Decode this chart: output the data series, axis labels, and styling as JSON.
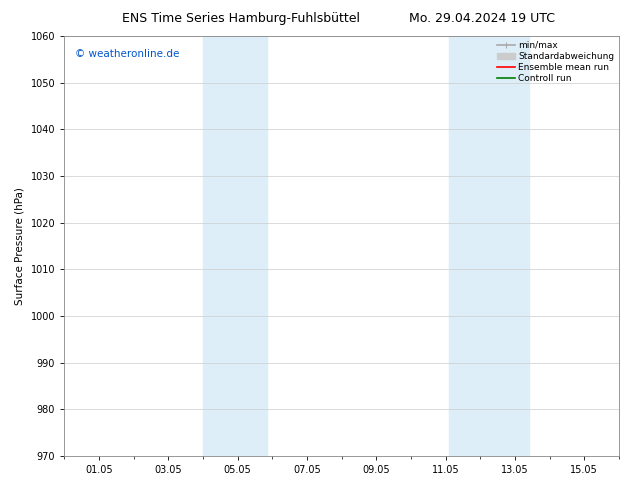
{
  "title_left": "ENS Time Series Hamburg-Fuhlsbüttel",
  "title_right": "Mo. 29.04.2024 19 UTC",
  "ylabel": "Surface Pressure (hPa)",
  "ylim": [
    970,
    1060
  ],
  "yticks": [
    970,
    980,
    990,
    1000,
    1010,
    1020,
    1030,
    1040,
    1050,
    1060
  ],
  "xtick_labels": [
    "01.05",
    "03.05",
    "05.05",
    "07.05",
    "09.05",
    "11.05",
    "13.05",
    "15.05"
  ],
  "xtick_positions": [
    1,
    3,
    5,
    7,
    9,
    11,
    13,
    15
  ],
  "xlim": [
    0,
    16
  ],
  "shaded_bands": [
    {
      "x_start": 4.0,
      "x_end": 5.85,
      "color": "#ddeef8"
    },
    {
      "x_start": 11.1,
      "x_end": 13.4,
      "color": "#ddeef8"
    }
  ],
  "watermark_text": "© weatheronline.de",
  "watermark_color": "#0055cc",
  "legend_entries": [
    {
      "label": "min/max",
      "color": "#aaaaaa",
      "lw": 1.2,
      "style": "solid"
    },
    {
      "label": "Standardabweichung",
      "color": "#cccccc",
      "lw": 5,
      "style": "solid"
    },
    {
      "label": "Ensemble mean run",
      "color": "red",
      "lw": 1.2,
      "style": "solid"
    },
    {
      "label": "Controll run",
      "color": "green",
      "lw": 1.2,
      "style": "solid"
    }
  ],
  "background_color": "#ffffff",
  "grid_color": "#cccccc",
  "title_fontsize": 9,
  "axis_fontsize": 7.5,
  "tick_fontsize": 7,
  "legend_fontsize": 6.5,
  "watermark_fontsize": 7.5
}
